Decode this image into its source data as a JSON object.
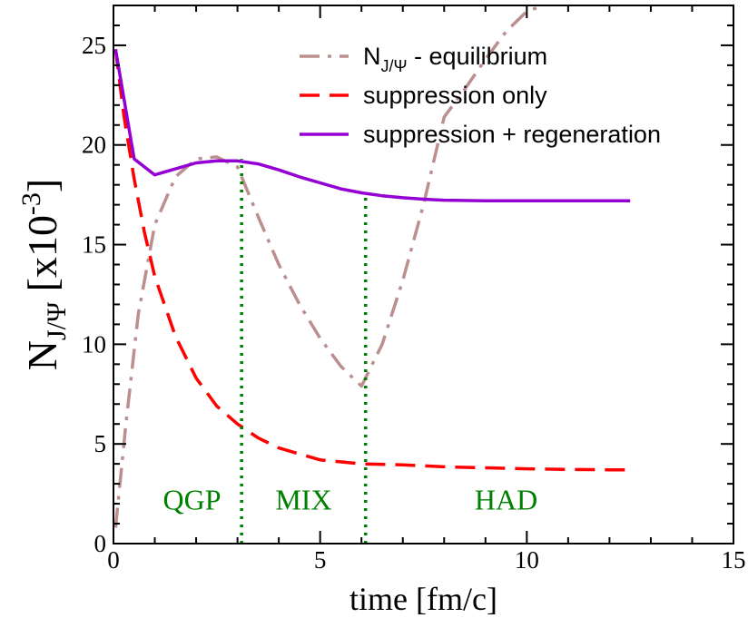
{
  "chart_data": {
    "type": "line",
    "xlabel": "time [fm/c]",
    "ylabel": {
      "main": "N",
      "sub": "J/Ψ",
      "bracket_open": " [x10",
      "exponent": "-3",
      "bracket_close": "]"
    },
    "xlim": [
      0,
      15
    ],
    "ylim": [
      0,
      27
    ],
    "xticks": [
      0,
      5,
      10,
      15
    ],
    "yticks": [
      0,
      5,
      10,
      15,
      20,
      25
    ],
    "xminor": 1,
    "yminor": 1,
    "grid": false,
    "legend_position": "top-right",
    "series": [
      {
        "name": "equilibrium",
        "label_main": "N",
        "label_sub": "J/Ψ",
        "label_rest": " - equilibrium",
        "color": "#bc8f8f",
        "style": "dashdot",
        "x": [
          0.05,
          0.3,
          0.6,
          1.0,
          1.5,
          2.0,
          2.5,
          3.0,
          3.5,
          4.0,
          4.5,
          5.0,
          5.5,
          6.0,
          6.5,
          7.0,
          7.5,
          8.0,
          8.5,
          9.0,
          9.5,
          10.0,
          10.4
        ],
        "y": [
          0.8,
          6.0,
          11.5,
          16.0,
          18.4,
          19.3,
          19.4,
          18.9,
          16.4,
          14.0,
          12.0,
          10.3,
          8.9,
          7.9,
          10.0,
          13.2,
          17.0,
          21.4,
          22.8,
          24.3,
          25.7,
          26.7,
          27.0
        ]
      },
      {
        "name": "suppression only",
        "label_main": "suppression only",
        "color": "#ff0000",
        "style": "dashed",
        "x": [
          0.05,
          0.25,
          0.5,
          0.75,
          1.0,
          1.5,
          2.0,
          2.5,
          3.0,
          3.5,
          4.0,
          5.0,
          6.0,
          7.0,
          8.0,
          9.0,
          10.0,
          11.0,
          12.0,
          12.5
        ],
        "y": [
          24.8,
          21.5,
          18.3,
          15.6,
          13.4,
          10.4,
          8.3,
          6.9,
          6.0,
          5.3,
          4.8,
          4.2,
          4.0,
          3.95,
          3.85,
          3.8,
          3.75,
          3.72,
          3.7,
          3.7
        ]
      },
      {
        "name": "suppression + regeneration",
        "label_main": "suppression + regeneration",
        "color": "#9400d3",
        "style": "solid",
        "x": [
          0.05,
          0.5,
          1.0,
          1.5,
          2.0,
          2.5,
          3.0,
          3.5,
          4.0,
          4.5,
          5.0,
          5.5,
          6.0,
          6.5,
          7.0,
          7.5,
          8.0,
          9.0,
          10.0,
          11.0,
          12.0,
          12.5
        ],
        "y": [
          24.8,
          19.3,
          18.5,
          18.8,
          19.1,
          19.2,
          19.2,
          19.05,
          18.75,
          18.4,
          18.1,
          17.8,
          17.6,
          17.45,
          17.35,
          17.28,
          17.23,
          17.2,
          17.2,
          17.2,
          17.2,
          17.2
        ]
      }
    ],
    "vlines": [
      {
        "x": 3.1,
        "y_from": 0,
        "y_to": 19.3,
        "color": "#008000",
        "style": "dotted"
      },
      {
        "x": 6.1,
        "y_from": 0,
        "y_to": 17.6,
        "color": "#008000",
        "style": "dotted"
      }
    ],
    "annotations": [
      {
        "text": "QGP",
        "x": 1.9,
        "y": 1.7,
        "color": "#008000"
      },
      {
        "text": "MIX",
        "x": 4.6,
        "y": 1.7,
        "color": "#008000"
      },
      {
        "text": "HAD",
        "x": 9.5,
        "y": 1.7,
        "color": "#008000"
      }
    ]
  }
}
